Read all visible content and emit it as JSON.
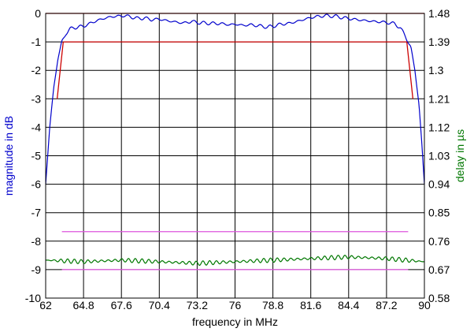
{
  "chart_data": {
    "type": "line",
    "xlabel": "frequency in MHz",
    "ylabel_left": "magnitude in dB",
    "ylabel_right": "delay in µs",
    "xlim": [
      62,
      90
    ],
    "ylim_left": [
      -10,
      0
    ],
    "ylim_right": [
      0.58,
      1.48
    ],
    "x_ticks": [
      "62",
      "64.8",
      "67.6",
      "70.4",
      "73.2",
      "76",
      "78.8",
      "81.6",
      "84.4",
      "87.2",
      "90"
    ],
    "y_left_ticks": [
      "0",
      "-1",
      "-2",
      "-3",
      "-4",
      "-5",
      "-6",
      "-7",
      "-8",
      "-9",
      "-10"
    ],
    "y_right_ticks": [
      "1.48",
      "1.39",
      "1.3",
      "1.21",
      "1.12",
      "1.03",
      "0.94",
      "0.85",
      "0.76",
      "0.67",
      "0.58"
    ],
    "grid": true,
    "colors": {
      "magnitude": "#0000cc",
      "mask": "#cc0000",
      "delay": "#007700",
      "delay_limits": "#dd55dd",
      "magnitude_label": "#0000cc",
      "delay_label": "#007700"
    },
    "series": [
      {
        "axis": "left",
        "style": "magnitude",
        "points": [
          [
            62.0,
            -6.0
          ],
          [
            62.3,
            -4.0
          ],
          [
            62.6,
            -2.6
          ],
          [
            62.9,
            -1.6
          ],
          [
            63.2,
            -1.0
          ],
          [
            63.5,
            -0.7
          ],
          [
            63.8,
            -0.55
          ],
          [
            64.1,
            -0.5
          ],
          [
            64.4,
            -0.48
          ],
          [
            64.8,
            -0.45
          ],
          [
            65.3,
            -0.35
          ],
          [
            65.8,
            -0.25
          ],
          [
            66.3,
            -0.18
          ],
          [
            66.8,
            -0.12
          ],
          [
            67.3,
            -0.1
          ],
          [
            67.8,
            -0.08
          ],
          [
            68.3,
            -0.12
          ],
          [
            68.8,
            -0.18
          ],
          [
            69.3,
            -0.16
          ],
          [
            69.8,
            -0.22
          ],
          [
            70.4,
            -0.2
          ],
          [
            71.0,
            -0.26
          ],
          [
            71.6,
            -0.3
          ],
          [
            72.2,
            -0.34
          ],
          [
            72.8,
            -0.28
          ],
          [
            73.2,
            -0.32
          ],
          [
            73.8,
            -0.34
          ],
          [
            74.4,
            -0.35
          ],
          [
            75.0,
            -0.36
          ],
          [
            75.6,
            -0.4
          ],
          [
            76.0,
            -0.38
          ],
          [
            76.6,
            -0.42
          ],
          [
            77.2,
            -0.4
          ],
          [
            77.8,
            -0.44
          ],
          [
            78.4,
            -0.48
          ],
          [
            78.8,
            -0.45
          ],
          [
            79.4,
            -0.38
          ],
          [
            80.0,
            -0.35
          ],
          [
            80.6,
            -0.28
          ],
          [
            81.2,
            -0.2
          ],
          [
            81.6,
            -0.15
          ],
          [
            82.2,
            -0.1
          ],
          [
            82.8,
            -0.08
          ],
          [
            83.4,
            -0.1
          ],
          [
            84.0,
            -0.15
          ],
          [
            84.4,
            -0.18
          ],
          [
            85.0,
            -0.22
          ],
          [
            85.6,
            -0.25
          ],
          [
            86.2,
            -0.28
          ],
          [
            86.8,
            -0.3
          ],
          [
            87.2,
            -0.32
          ],
          [
            87.8,
            -0.36
          ],
          [
            88.2,
            -0.5
          ],
          [
            88.6,
            -0.8
          ],
          [
            89.0,
            -1.2
          ],
          [
            89.3,
            -2.0
          ],
          [
            89.6,
            -3.2
          ],
          [
            89.8,
            -4.5
          ],
          [
            90.0,
            -6.0
          ]
        ],
        "ripple_amplitude": 0.06,
        "ripple_period_mhz": 0.7
      },
      {
        "axis": "left",
        "style": "mask",
        "segments": [
          [
            [
              62.0,
              0.0
            ],
            [
              90.0,
              0.0
            ]
          ],
          [
            [
              63.3,
              -1.0
            ],
            [
              88.7,
              -1.0
            ]
          ],
          [
            [
              62.85,
              -3.0
            ],
            [
              63.3,
              -1.0
            ]
          ],
          [
            [
              88.7,
              -1.0
            ],
            [
              89.15,
              -3.0
            ]
          ]
        ]
      },
      {
        "axis": "right",
        "style": "delay",
        "points": [
          [
            62.0,
            0.7
          ],
          [
            64.8,
            0.695
          ],
          [
            67.6,
            0.7
          ],
          [
            70.4,
            0.695
          ],
          [
            73.2,
            0.69
          ],
          [
            76.0,
            0.695
          ],
          [
            78.8,
            0.7
          ],
          [
            81.6,
            0.705
          ],
          [
            84.4,
            0.71
          ],
          [
            87.2,
            0.705
          ],
          [
            90.0,
            0.695
          ]
        ],
        "ripple_amplitude": 0.007,
        "ripple_period_mhz": 0.5
      },
      {
        "axis": "right",
        "style": "delay_limits",
        "segments": [
          [
            [
              63.2,
              0.79
            ],
            [
              88.8,
              0.79
            ]
          ],
          [
            [
              63.2,
              0.67
            ],
            [
              88.8,
              0.67
            ]
          ]
        ]
      }
    ]
  }
}
